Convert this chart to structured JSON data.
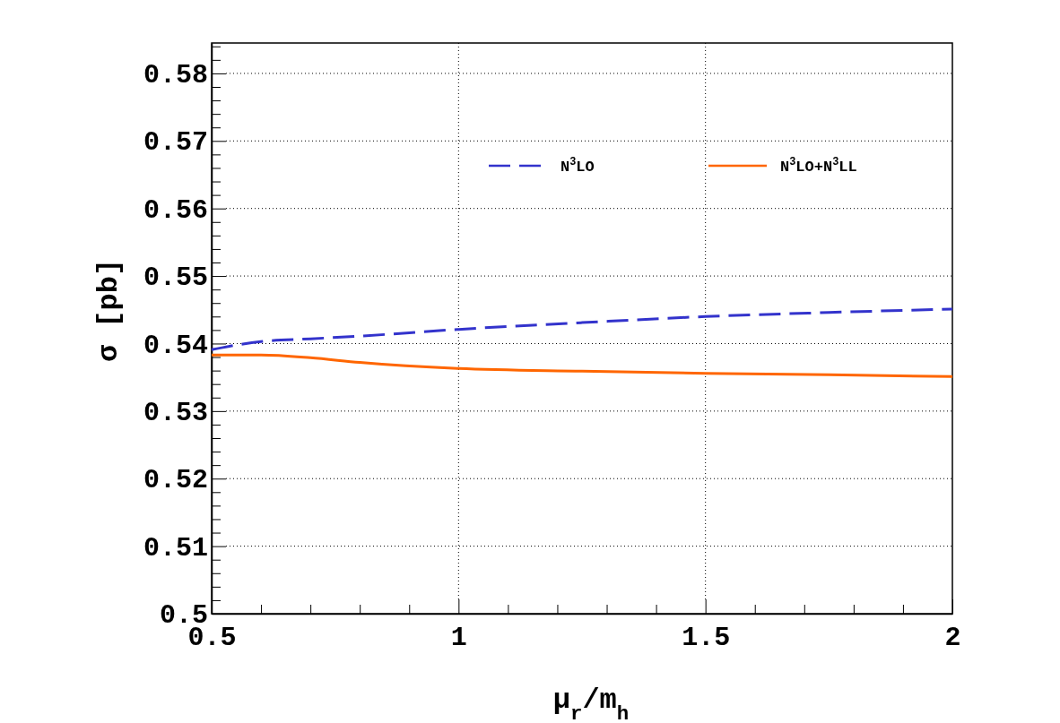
{
  "chart_data": {
    "type": "line",
    "xlabel": "μ$_{r}$/m$_{h}$",
    "ylabel": "σ [pb]",
    "xlim": [
      0.5,
      2
    ],
    "ylim": [
      0.5,
      0.5845
    ],
    "xticks": [
      0.5,
      {
        "value": 0.6,
        "label": null
      },
      {
        "value": 0.7,
        "label": null
      },
      {
        "value": 0.8,
        "label": null
      },
      {
        "value": 0.9,
        "label": null
      },
      1,
      {
        "value": 1.1,
        "label": null
      },
      {
        "value": 1.2,
        "label": null
      },
      {
        "value": 1.3,
        "label": null
      },
      {
        "value": 1.4,
        "label": null
      },
      1.5,
      {
        "value": 1.6,
        "label": null
      },
      {
        "value": 1.7,
        "label": null
      },
      {
        "value": 1.8,
        "label": null
      },
      {
        "value": 1.9,
        "label": null
      },
      2
    ],
    "yticks": [
      {
        "value": 0.5,
        "label": "0.5"
      },
      {
        "value": 0.502,
        "label": null
      },
      {
        "value": 0.504,
        "label": null
      },
      {
        "value": 0.506,
        "label": null
      },
      {
        "value": 0.508,
        "label": null
      },
      0.51,
      {
        "value": 0.512,
        "label": null
      },
      {
        "value": 0.514,
        "label": null
      },
      {
        "value": 0.516,
        "label": null
      },
      {
        "value": 0.518,
        "label": null
      },
      0.52,
      {
        "value": 0.522,
        "label": null
      },
      {
        "value": 0.524,
        "label": null
      },
      {
        "value": 0.526,
        "label": null
      },
      {
        "value": 0.528,
        "label": null
      },
      0.53,
      {
        "value": 0.532,
        "label": null
      },
      {
        "value": 0.534,
        "label": null
      },
      {
        "value": 0.536,
        "label": null
      },
      {
        "value": 0.538,
        "label": null
      },
      0.54,
      {
        "value": 0.542,
        "label": null
      },
      {
        "value": 0.544,
        "label": null
      },
      {
        "value": 0.546,
        "label": null
      },
      {
        "value": 0.548,
        "label": null
      },
      0.55,
      {
        "value": 0.552,
        "label": null
      },
      {
        "value": 0.554,
        "label": null
      },
      {
        "value": 0.556,
        "label": null
      },
      {
        "value": 0.558,
        "label": null
      },
      0.56,
      {
        "value": 0.562,
        "label": null
      },
      {
        "value": 0.564,
        "label": null
      },
      {
        "value": 0.566,
        "label": null
      },
      {
        "value": 0.568,
        "label": null
      },
      0.57,
      {
        "value": 0.572,
        "label": null
      },
      {
        "value": 0.574,
        "label": null
      },
      {
        "value": 0.576,
        "label": null
      },
      {
        "value": 0.578,
        "label": null
      },
      0.58,
      {
        "value": 0.582,
        "label": null
      },
      {
        "value": 0.584,
        "label": null
      }
    ],
    "grid": true,
    "legend": "top right",
    "x": [
      0.5,
      0.6,
      0.7,
      0.8,
      1.0,
      1.25,
      1.5,
      1.75,
      2.0
    ],
    "series": [
      {
        "name": "N$^{3}$LO",
        "color": "#3333cc",
        "line_style": "dashed",
        "values": [
          0.5391,
          0.5403,
          0.5407,
          0.5411,
          0.5421,
          0.5431,
          0.544,
          0.5446,
          0.5451
        ]
      },
      {
        "name": "N$^{3}$LO+N$^{3}$LL",
        "color": "#ff6600",
        "line_style": "solid",
        "values": [
          0.5383,
          0.5383,
          0.5379,
          0.5372,
          0.5363,
          0.5359,
          0.5356,
          0.5354,
          0.5351
        ]
      }
    ]
  }
}
